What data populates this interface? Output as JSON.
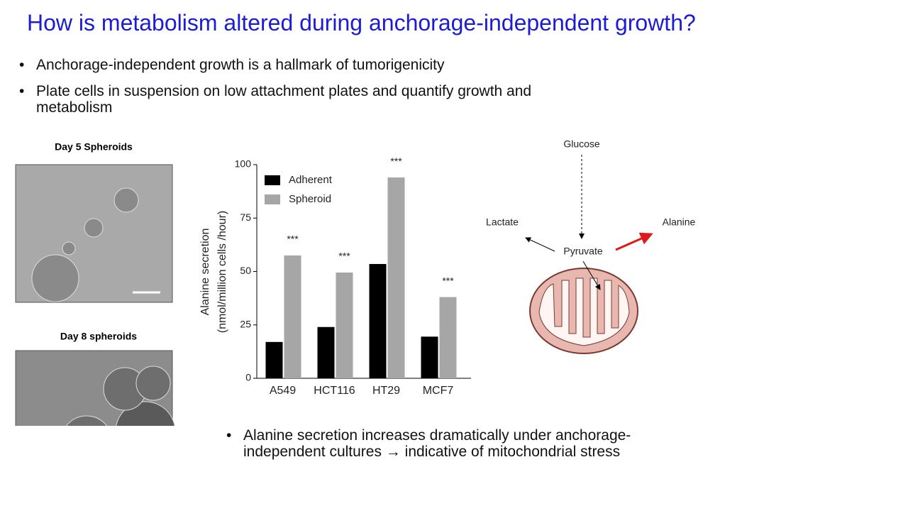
{
  "title": "How is metabolism altered during anchorage-independent growth?",
  "bullets": [
    "Anchorage-independent growth is a hallmark of tumorigenicity",
    "Plate cells in suspension on low attachment plates and quantify growth and metabolism"
  ],
  "images": [
    {
      "label": "Day 5 Spheroids"
    },
    {
      "label": "Day 8 spheroids"
    }
  ],
  "chart_data": {
    "type": "bar",
    "ylabel": [
      "Alanine secretion",
      "(nmol/million cells /hour)"
    ],
    "categories": [
      "A549",
      "HCT116",
      "HT29",
      "MCF7"
    ],
    "series": [
      {
        "name": "Adherent",
        "color": "#000000",
        "values": [
          17,
          24,
          53.5,
          19.5
        ]
      },
      {
        "name": "Spheroid",
        "color": "#a6a6a6",
        "values": [
          57.5,
          49.5,
          94,
          38
        ],
        "annotations": [
          "***",
          "***",
          "***",
          "***"
        ]
      }
    ],
    "ylim": [
      0,
      100
    ],
    "yticks": [
      0,
      25,
      50,
      75,
      100
    ],
    "legend": "upper-left"
  },
  "diagram": {
    "nodes": [
      "Glucose",
      "Lactate",
      "Pyruvate",
      "Alanine"
    ]
  },
  "conclusion": "Alanine secretion increases dramatically under anchorage-independent cultures → indicative of mitochondrial stress"
}
